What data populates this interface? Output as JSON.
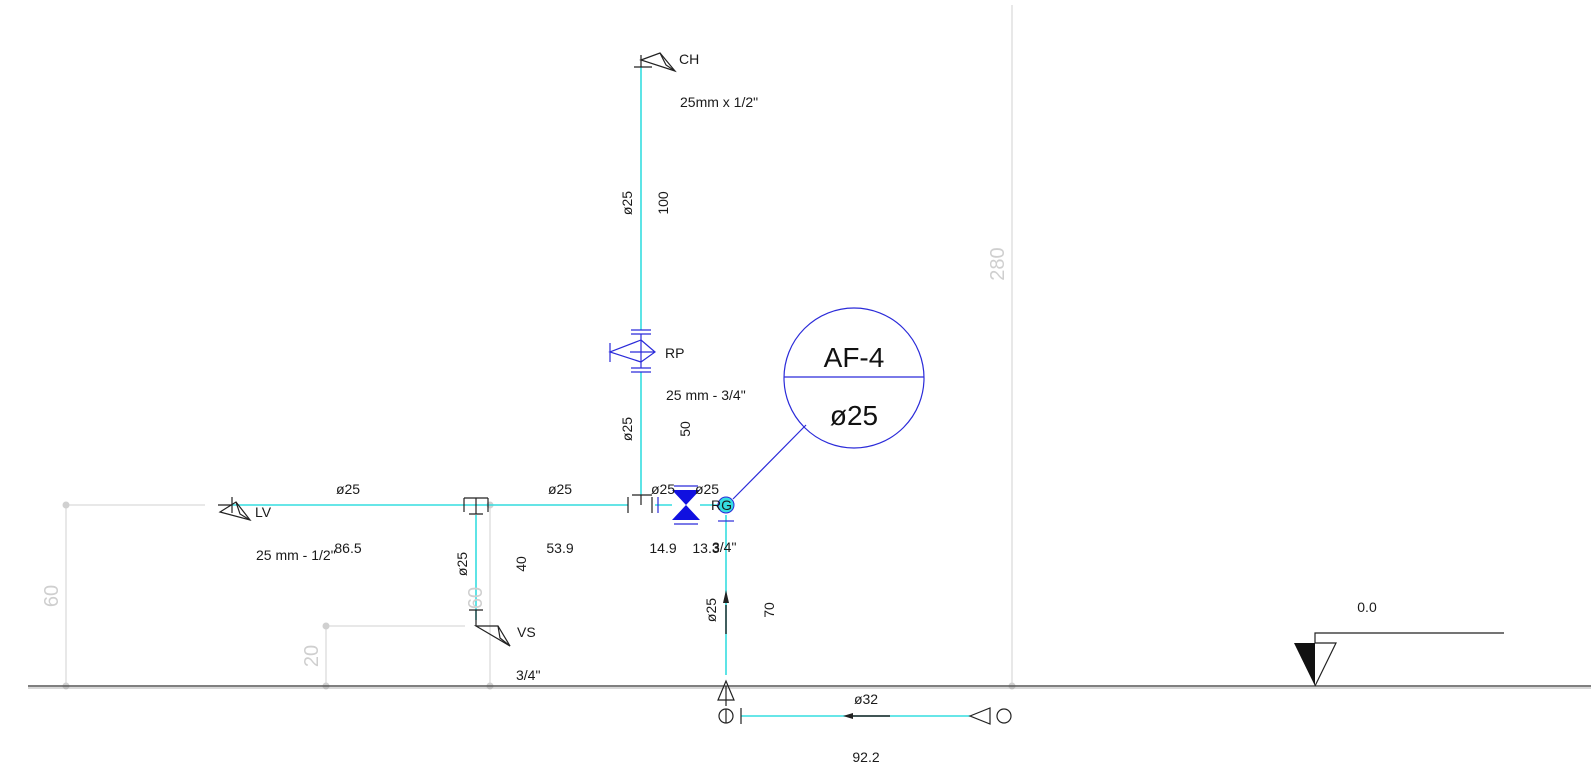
{
  "fixtures": {
    "ch": {
      "tag": "CH",
      "size": "25mm x 1/2\""
    },
    "rp": {
      "tag": "RP",
      "size": "25 mm - 3/4\""
    },
    "lv": {
      "tag": "LV",
      "size": "25 mm - 1/2\""
    },
    "vs": {
      "tag": "VS",
      "size": "3/4\""
    },
    "rg": {
      "tag": "RG",
      "size": "3/4\""
    }
  },
  "callout": {
    "id": "AF-4",
    "diameter": "ø25"
  },
  "pipes": {
    "vert_top_diam": "ø25",
    "vert_top_len": "100",
    "vert_mid_diam": "ø25",
    "vert_mid_len": "50",
    "lv_diam": "ø25",
    "lv_len": "86.5",
    "center_diam": "ø25",
    "center_len": "53.9",
    "left_tee_diam": "ø25",
    "left_tee_len": "14.9",
    "right_tee_diam": "ø25",
    "right_tee_len": "13.3",
    "vs_drop_diam": "ø25",
    "vs_drop_len": "40",
    "riser_diam": "ø25",
    "riser_len": "70",
    "supply_diam": "ø32",
    "supply_len": "92.2"
  },
  "dimensions": {
    "total_height": "280",
    "lv_height": "60",
    "vs_height": "60",
    "vs_low_height": "20"
  },
  "level_marker": {
    "value": "0.0"
  },
  "colors": {
    "pipe": "#35dde0",
    "fitting": "#2b2bd9",
    "dimension": "#cfcfcf",
    "symbol": "#222222"
  }
}
